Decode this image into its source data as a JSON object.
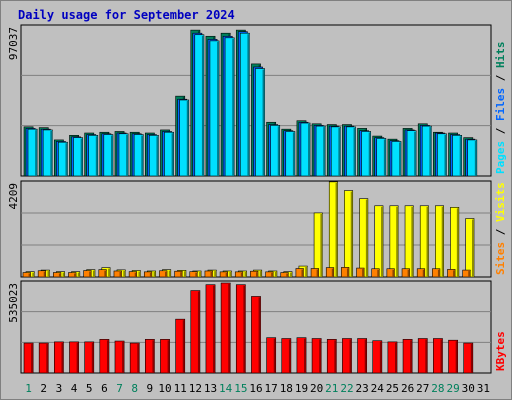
{
  "title": "Daily usage for September 2024",
  "colors": {
    "pages": "#00e0ff",
    "files": "#0066ff",
    "hits": "#00805c",
    "sites": "#ff8000",
    "visits": "#ffff00",
    "kbytes": "#ff0000",
    "weekend_label": "#00805c",
    "weekday_label": "#000000",
    "background": "#c0c0c0",
    "plot_background": "#c0c0c0"
  },
  "chart_data": [
    {
      "type": "bar",
      "name": "hits-files-pages",
      "ytick_label": "97037",
      "right_labels": [
        "Pages",
        "Files",
        "Hits"
      ],
      "categories": [
        "1",
        "2",
        "3",
        "4",
        "5",
        "6",
        "7",
        "8",
        "9",
        "10",
        "11",
        "12",
        "13",
        "14",
        "15",
        "16",
        "17",
        "18",
        "19",
        "20",
        "21",
        "22",
        "23",
        "24",
        "25",
        "26",
        "27",
        "28",
        "29",
        "30",
        "31"
      ],
      "ylim": [
        0,
        97037
      ],
      "series": [
        {
          "name": "Hits",
          "values": [
            32000,
            31500,
            23500,
            26500,
            28000,
            28500,
            29000,
            28500,
            28000,
            30000,
            52000,
            95000,
            91000,
            93000,
            95000,
            73000,
            35000,
            30500,
            36000,
            34000,
            33500,
            33500,
            31000,
            26000,
            24000,
            31000,
            34000,
            28500,
            28000,
            25000,
            0
          ]
        },
        {
          "name": "Files",
          "values": [
            31000,
            30500,
            22500,
            25500,
            27000,
            27500,
            28000,
            27500,
            27000,
            29000,
            50000,
            93000,
            89000,
            91000,
            94000,
            71000,
            33500,
            29500,
            35000,
            33000,
            32500,
            32500,
            29500,
            25000,
            23000,
            30000,
            33000,
            28000,
            27000,
            24000,
            0
          ]
        },
        {
          "name": "Pages",
          "values": [
            30500,
            30000,
            22000,
            25000,
            26500,
            27000,
            27500,
            27000,
            26500,
            28500,
            49500,
            92000,
            88000,
            90000,
            93000,
            70000,
            33000,
            29000,
            34500,
            32500,
            32000,
            32000,
            29000,
            24500,
            22500,
            29500,
            32500,
            27500,
            26500,
            23500,
            0
          ]
        }
      ]
    },
    {
      "type": "bar",
      "name": "visits-sites",
      "ytick_label": "4209",
      "right_labels": [
        "Sites",
        "Visits"
      ],
      "categories": [
        "1",
        "2",
        "3",
        "4",
        "5",
        "6",
        "7",
        "8",
        "9",
        "10",
        "11",
        "12",
        "13",
        "14",
        "15",
        "16",
        "17",
        "18",
        "19",
        "20",
        "21",
        "22",
        "23",
        "24",
        "25",
        "26",
        "27",
        "28",
        "29",
        "30",
        "31"
      ],
      "ylim": [
        0,
        4209
      ],
      "series": [
        {
          "name": "Visits",
          "values": [
            240,
            310,
            240,
            240,
            330,
            420,
            320,
            290,
            270,
            330,
            300,
            270,
            310,
            270,
            270,
            310,
            270,
            240,
            490,
            2870,
            4260,
            3870,
            3510,
            3190,
            3190,
            3190,
            3190,
            3190,
            3120,
            2620,
            0
          ]
        },
        {
          "name": "Sites",
          "values": [
            200,
            280,
            200,
            200,
            290,
            330,
            270,
            240,
            230,
            280,
            260,
            240,
            270,
            230,
            230,
            260,
            230,
            200,
            380,
            380,
            420,
            430,
            400,
            370,
            370,
            370,
            370,
            370,
            340,
            310,
            0
          ]
        }
      ]
    },
    {
      "type": "bar",
      "name": "kbytes",
      "ytick_label": "535023",
      "right_labels": [
        "KBytes"
      ],
      "categories": [
        "1",
        "2",
        "3",
        "4",
        "5",
        "6",
        "7",
        "8",
        "9",
        "10",
        "11",
        "12",
        "13",
        "14",
        "15",
        "16",
        "17",
        "18",
        "19",
        "20",
        "21",
        "22",
        "23",
        "24",
        "25",
        "26",
        "27",
        "28",
        "29",
        "30",
        "31"
      ],
      "ylim": [
        0,
        535023
      ],
      "series": [
        {
          "name": "KBytes",
          "values": [
            178000,
            178000,
            185000,
            185000,
            185000,
            200000,
            190000,
            178000,
            200000,
            200000,
            320000,
            490000,
            525000,
            535000,
            525000,
            455000,
            210000,
            205000,
            210000,
            205000,
            200000,
            205000,
            205000,
            192000,
            185000,
            200000,
            205000,
            205000,
            195000,
            178000,
            0
          ]
        }
      ]
    }
  ],
  "x_labels": [
    {
      "text": "1",
      "weekend": true
    },
    {
      "text": "2",
      "weekend": false
    },
    {
      "text": "3",
      "weekend": false
    },
    {
      "text": "4",
      "weekend": false
    },
    {
      "text": "5",
      "weekend": false
    },
    {
      "text": "6",
      "weekend": false
    },
    {
      "text": "7",
      "weekend": true
    },
    {
      "text": "8",
      "weekend": true
    },
    {
      "text": "9",
      "weekend": false
    },
    {
      "text": "10",
      "weekend": false
    },
    {
      "text": "11",
      "weekend": false
    },
    {
      "text": "12",
      "weekend": false
    },
    {
      "text": "13",
      "weekend": false
    },
    {
      "text": "14",
      "weekend": true
    },
    {
      "text": "15",
      "weekend": true
    },
    {
      "text": "16",
      "weekend": false
    },
    {
      "text": "17",
      "weekend": false
    },
    {
      "text": "18",
      "weekend": false
    },
    {
      "text": "19",
      "weekend": false
    },
    {
      "text": "20",
      "weekend": false
    },
    {
      "text": "21",
      "weekend": true
    },
    {
      "text": "22",
      "weekend": true
    },
    {
      "text": "23",
      "weekend": false
    },
    {
      "text": "24",
      "weekend": false
    },
    {
      "text": "25",
      "weekend": false
    },
    {
      "text": "26",
      "weekend": false
    },
    {
      "text": "27",
      "weekend": false
    },
    {
      "text": "28",
      "weekend": true
    },
    {
      "text": "29",
      "weekend": true
    },
    {
      "text": "30",
      "weekend": false
    },
    {
      "text": "31",
      "weekend": false
    }
  ]
}
